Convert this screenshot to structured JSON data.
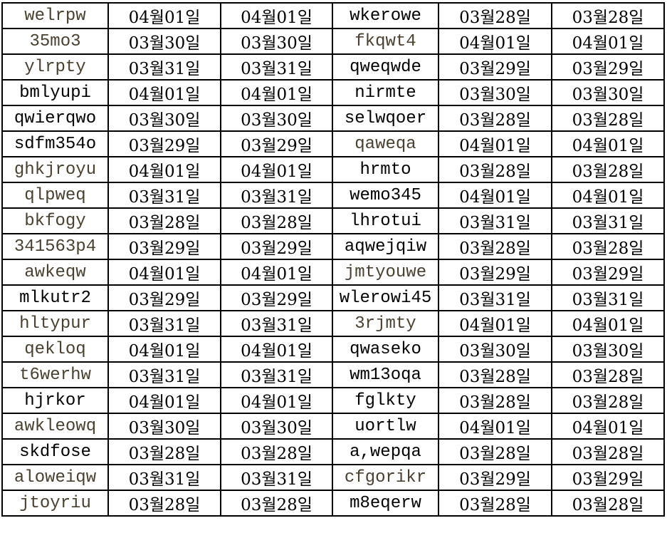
{
  "colors": {
    "text": "#000000",
    "muted_text": "#4a4030",
    "grid": "#000000"
  },
  "rows": [
    {
      "a": "welrpw",
      "a_muted": true,
      "d1": "04월01일",
      "d2": "04월01일",
      "b": "wkerowe",
      "b_muted": false,
      "d3": "03월28일",
      "d4": "03월28일"
    },
    {
      "a": "35mo3",
      "a_muted": true,
      "d1": "03월30일",
      "d2": "03월30일",
      "b": "fkqwt4",
      "b_muted": true,
      "d3": "04월01일",
      "d4": "04월01일"
    },
    {
      "a": "ylrpty",
      "a_muted": true,
      "d1": "03월31일",
      "d2": "03월31일",
      "b": "qweqwde",
      "b_muted": false,
      "d3": "03월29일",
      "d4": "03월29일"
    },
    {
      "a": "bmlyupi",
      "a_muted": false,
      "d1": "04월01일",
      "d2": "04월01일",
      "b": "nirmte",
      "b_muted": false,
      "d3": "03월30일",
      "d4": "03월30일"
    },
    {
      "a": "qwierqwo",
      "a_muted": false,
      "d1": "03월30일",
      "d2": "03월30일",
      "b": "selwqoer",
      "b_muted": false,
      "d3": "03월28일",
      "d4": "03월28일"
    },
    {
      "a": "sdfm354o",
      "a_muted": false,
      "d1": "03월29일",
      "d2": "03월29일",
      "b": "qaweqa",
      "b_muted": true,
      "d3": "04월01일",
      "d4": "04월01일"
    },
    {
      "a": "ghkjroyu",
      "a_muted": true,
      "d1": "04월01일",
      "d2": "04월01일",
      "b": "hrmto",
      "b_muted": false,
      "d3": "03월28일",
      "d4": "03월28일"
    },
    {
      "a": "qlpweq",
      "a_muted": true,
      "d1": "03월31일",
      "d2": "03월31일",
      "b": "wemo345",
      "b_muted": false,
      "d3": "04월01일",
      "d4": "04월01일"
    },
    {
      "a": "bkfogy",
      "a_muted": true,
      "d1": "03월28일",
      "d2": "03월28일",
      "b": "lhrotui",
      "b_muted": false,
      "d3": "03월31일",
      "d4": "03월31일"
    },
    {
      "a": "341563p4",
      "a_muted": true,
      "d1": "03월29일",
      "d2": "03월29일",
      "b": "aqwejqiw",
      "b_muted": false,
      "d3": "03월28일",
      "d4": "03월28일"
    },
    {
      "a": "awkeqw",
      "a_muted": true,
      "d1": "04월01일",
      "d2": "04월01일",
      "b": "jmtyouwe",
      "b_muted": true,
      "d3": "03월29일",
      "d4": "03월29일"
    },
    {
      "a": "mlkutr2",
      "a_muted": false,
      "d1": "03월29일",
      "d2": "03월29일",
      "b": "wlerowi45",
      "b_muted": false,
      "d3": "03월31일",
      "d4": "03월31일"
    },
    {
      "a": "hltypur",
      "a_muted": true,
      "d1": "03월31일",
      "d2": "03월31일",
      "b": "3rjmty",
      "b_muted": true,
      "d3": "04월01일",
      "d4": "04월01일"
    },
    {
      "a": "qekloq",
      "a_muted": true,
      "d1": "04월01일",
      "d2": "04월01일",
      "b": "qwaseko",
      "b_muted": false,
      "d3": "03월30일",
      "d4": "03월30일"
    },
    {
      "a": "t6werhw",
      "a_muted": true,
      "d1": "03월31일",
      "d2": "03월31일",
      "b": "wm13oqa",
      "b_muted": false,
      "d3": "03월28일",
      "d4": "03월28일"
    },
    {
      "a": "hjrkor",
      "a_muted": false,
      "d1": "04월01일",
      "d2": "04월01일",
      "b": "fglkty",
      "b_muted": false,
      "d3": "03월28일",
      "d4": "03월28일"
    },
    {
      "a": "awkleowq",
      "a_muted": true,
      "d1": "03월30일",
      "d2": "03월30일",
      "b": "uortlw",
      "b_muted": false,
      "d3": "04월01일",
      "d4": "04월01일"
    },
    {
      "a": "skdfose",
      "a_muted": false,
      "d1": "03월28일",
      "d2": "03월28일",
      "b": "a,wepqa",
      "b_muted": false,
      "d3": "03월28일",
      "d4": "03월28일"
    },
    {
      "a": "aloweiqw",
      "a_muted": true,
      "d1": "03월31일",
      "d2": "03월31일",
      "b": "cfgorikr",
      "b_muted": true,
      "d3": "03월29일",
      "d4": "03월29일"
    },
    {
      "a": "jtoyriu",
      "a_muted": true,
      "d1": "03월28일",
      "d2": "03월28일",
      "b": "m8eqerw",
      "b_muted": false,
      "d3": "03월28일",
      "d4": "03월28일"
    }
  ]
}
